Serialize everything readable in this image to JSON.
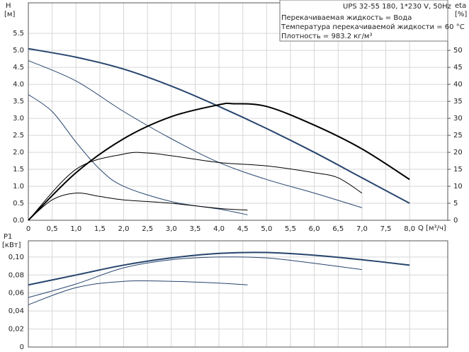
{
  "chart_data": [
    {
      "type": "line",
      "title": "UPS 32-55 180, 1*230 V, 50Hz",
      "notes": [
        "Перекачиваемая жидкость = Вода",
        "Температура перекачиваемой жидкости = 60 °C",
        "Плотность = 983.2 кг/м³"
      ],
      "xlabel": "Q [м³/ч]",
      "ylabel": "H",
      "ylabel_unit": "[м]",
      "y2label": "eta",
      "y2label_unit": "[%]",
      "xlim": [
        0,
        8.8
      ],
      "ylim": [
        0,
        6.4
      ],
      "y2lim": [
        0,
        64
      ],
      "grid": true,
      "xticks": [
        0,
        {
          "value": 0.5,
          "label": "0,5"
        },
        {
          "value": 1,
          "label": "1,0"
        },
        {
          "value": 1.5,
          "label": "1,5"
        },
        {
          "value": 2,
          "label": "2,0"
        },
        {
          "value": 2.5,
          "label": "2,5"
        },
        {
          "value": 3,
          "label": "3,0"
        },
        {
          "value": 3.5,
          "label": "3,5"
        },
        {
          "value": 4,
          "label": "4,0"
        },
        {
          "value": 4.5,
          "label": "4,5"
        },
        {
          "value": 5,
          "label": "5,0"
        },
        {
          "value": 5.5,
          "label": "5,5"
        },
        {
          "value": 6,
          "label": "6,0"
        },
        {
          "value": 6.5,
          "label": "6,5"
        },
        {
          "value": 7,
          "label": "7,0"
        },
        {
          "value": 7.5,
          "label": "7,5"
        },
        {
          "value": 8,
          "label": "8,0"
        }
      ],
      "yticks": [
        {
          "value": 0,
          "label": "0.0"
        },
        0.5,
        {
          "value": 1,
          "label": "1.0"
        },
        1.5,
        {
          "value": 2,
          "label": "2.0"
        },
        2.5,
        {
          "value": 3,
          "label": "3.0"
        },
        3.5,
        {
          "value": 4,
          "label": "4.0"
        },
        4.5,
        {
          "value": 5,
          "label": "5.0"
        },
        5.5
      ],
      "y2ticks": [
        0,
        5,
        10,
        15,
        20,
        25,
        30,
        35,
        40,
        45,
        50
      ],
      "series": [
        {
          "color": "#27456e",
          "width": 2,
          "x": [
            0,
            1,
            2,
            3,
            4,
            5,
            6,
            7,
            8
          ],
          "values": [
            5.05,
            4.8,
            4.45,
            3.95,
            3.35,
            2.7,
            2.0,
            1.25,
            0.5
          ]
        },
        {
          "color": "#27456e",
          "width": 1,
          "x": [
            0,
            1,
            2,
            3,
            4,
            5,
            6,
            7
          ],
          "values": [
            4.7,
            4.1,
            3.2,
            2.4,
            1.7,
            1.2,
            0.8,
            0.37
          ]
        },
        {
          "color": "#27456e",
          "width": 1,
          "x": [
            0,
            0.5,
            1,
            1.5,
            2,
            3,
            4,
            4.6
          ],
          "values": [
            3.7,
            3.2,
            2.3,
            1.5,
            1.0,
            0.55,
            0.33,
            0.16
          ]
        },
        {
          "color": "#000000",
          "width": 2,
          "axis": "y2",
          "x": [
            0,
            1,
            2,
            3,
            4,
            4.3,
            5,
            6,
            7,
            8
          ],
          "values": [
            0,
            14,
            24,
            30.5,
            34,
            34.3,
            33.5,
            28,
            21,
            12
          ]
        },
        {
          "color": "#000000",
          "width": 1,
          "axis": "y2",
          "x": [
            0,
            1,
            2,
            2.5,
            3,
            4,
            5,
            6,
            6.5,
            7
          ],
          "values": [
            0,
            15,
            19.5,
            19.8,
            19,
            17,
            16,
            14,
            12.5,
            8
          ]
        },
        {
          "color": "#000000",
          "width": 1,
          "axis": "y2",
          "x": [
            0,
            0.5,
            1,
            1.5,
            2,
            3,
            4,
            4.6
          ],
          "values": [
            0,
            6,
            8,
            7,
            6,
            5,
            3.5,
            3
          ]
        }
      ]
    },
    {
      "type": "line",
      "ylabel": "P1",
      "ylabel_unit": "[кВт]",
      "xlim": [
        0,
        8.8
      ],
      "ylim": [
        0,
        0.118
      ],
      "grid": true,
      "xticks": [
        0,
        0.5,
        1,
        1.5,
        2,
        2.5,
        3,
        3.5,
        4,
        4.5,
        5,
        5.5,
        6,
        6.5,
        7,
        7.5,
        8
      ],
      "yticks": [
        0,
        {
          "value": 0.02,
          "label": "0,02"
        },
        {
          "value": 0.04,
          "label": "0,04"
        },
        {
          "value": 0.06,
          "label": "0,06"
        },
        {
          "value": 0.08,
          "label": "0,08"
        },
        {
          "value": 0.1,
          "label": "0,10"
        }
      ],
      "series": [
        {
          "color": "#27456e",
          "width": 2,
          "x": [
            0,
            1,
            2,
            3,
            4,
            5,
            6,
            7,
            8
          ],
          "values": [
            0.069,
            0.08,
            0.091,
            0.099,
            0.104,
            0.105,
            0.102,
            0.097,
            0.091
          ]
        },
        {
          "color": "#27456e",
          "width": 1,
          "x": [
            0,
            1,
            2,
            3,
            4,
            5,
            6,
            7
          ],
          "values": [
            0.055,
            0.07,
            0.088,
            0.097,
            0.1,
            0.099,
            0.093,
            0.086
          ]
        },
        {
          "color": "#27456e",
          "width": 1,
          "x": [
            0,
            1,
            2,
            3,
            4,
            4.6
          ],
          "values": [
            0.047,
            0.066,
            0.073,
            0.073,
            0.071,
            0.069
          ]
        }
      ]
    }
  ]
}
